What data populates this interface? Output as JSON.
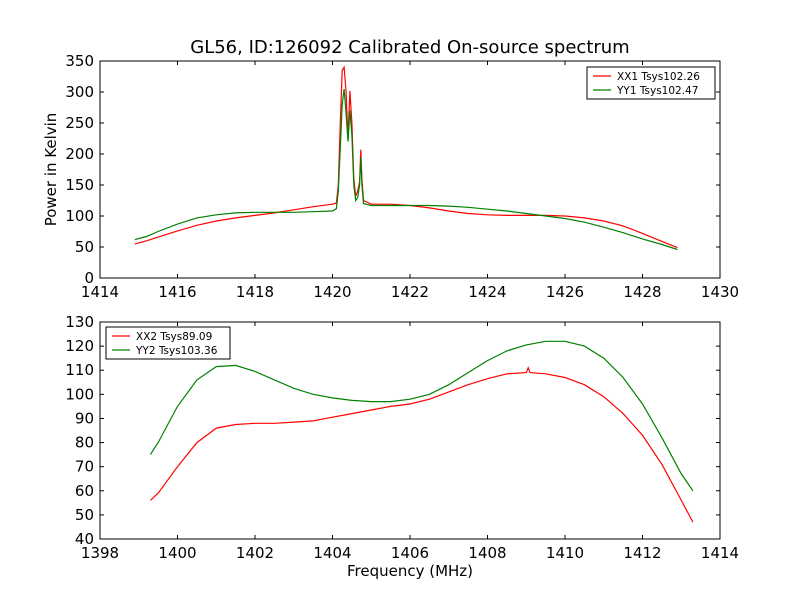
{
  "figure": {
    "title": "GL56, ID:126092 Calibrated On-source spectrum"
  },
  "chart_data": [
    {
      "type": "line",
      "title": "GL56, ID:126092 Calibrated On-source spectrum",
      "xlabel": "",
      "ylabel": "Power in Kelvin",
      "xlim": [
        1414,
        1430
      ],
      "ylim": [
        0,
        350
      ],
      "xticks": [
        1414,
        1416,
        1418,
        1420,
        1422,
        1424,
        1426,
        1428,
        1430
      ],
      "yticks": [
        0,
        50,
        100,
        150,
        200,
        250,
        300,
        350
      ],
      "grid": false,
      "legend": "top-right",
      "series": [
        {
          "name": "XX1 Tsys102.26",
          "color": "#ff0000",
          "points": [
            [
              1414.9,
              55
            ],
            [
              1415.2,
              60
            ],
            [
              1415.5,
              66
            ],
            [
              1416,
              76
            ],
            [
              1416.5,
              85
            ],
            [
              1417,
              92
            ],
            [
              1417.5,
              97
            ],
            [
              1418,
              101
            ],
            [
              1418.5,
              105
            ],
            [
              1419,
              110
            ],
            [
              1419.5,
              115
            ],
            [
              1420,
              119
            ],
            [
              1420.1,
              121
            ],
            [
              1420.15,
              150
            ],
            [
              1420.2,
              250
            ],
            [
              1420.25,
              335
            ],
            [
              1420.3,
              340
            ],
            [
              1420.35,
              300
            ],
            [
              1420.4,
              225
            ],
            [
              1420.45,
              302
            ],
            [
              1420.5,
              250
            ],
            [
              1420.55,
              160
            ],
            [
              1420.6,
              132
            ],
            [
              1420.65,
              140
            ],
            [
              1420.7,
              155
            ],
            [
              1420.73,
              207
            ],
            [
              1420.76,
              160
            ],
            [
              1420.8,
              125
            ],
            [
              1421,
              119
            ],
            [
              1421.5,
              119
            ],
            [
              1422,
              117
            ],
            [
              1422.5,
              113
            ],
            [
              1423,
              108
            ],
            [
              1423.5,
              104
            ],
            [
              1424,
              102
            ],
            [
              1424.5,
              101
            ],
            [
              1425,
              101
            ],
            [
              1425.5,
              101
            ],
            [
              1426,
              100
            ],
            [
              1426.5,
              97
            ],
            [
              1427,
              92
            ],
            [
              1427.5,
              84
            ],
            [
              1428,
              72
            ],
            [
              1428.5,
              59
            ],
            [
              1428.9,
              49
            ]
          ]
        },
        {
          "name": "YY1 Tsys102.47",
          "color": "#008000",
          "points": [
            [
              1414.9,
              62
            ],
            [
              1415.2,
              67
            ],
            [
              1415.5,
              75
            ],
            [
              1416,
              87
            ],
            [
              1416.5,
              97
            ],
            [
              1417,
              102
            ],
            [
              1417.5,
              105
            ],
            [
              1418,
              106
            ],
            [
              1418.5,
              106
            ],
            [
              1419,
              106
            ],
            [
              1419.5,
              107
            ],
            [
              1420,
              108
            ],
            [
              1420.1,
              112
            ],
            [
              1420.15,
              140
            ],
            [
              1420.2,
              210
            ],
            [
              1420.25,
              280
            ],
            [
              1420.3,
              305
            ],
            [
              1420.35,
              265
            ],
            [
              1420.4,
              220
            ],
            [
              1420.45,
              270
            ],
            [
              1420.5,
              230
            ],
            [
              1420.55,
              150
            ],
            [
              1420.6,
              125
            ],
            [
              1420.65,
              130
            ],
            [
              1420.7,
              150
            ],
            [
              1420.73,
              195
            ],
            [
              1420.76,
              150
            ],
            [
              1420.8,
              120
            ],
            [
              1421,
              117
            ],
            [
              1421.5,
              117
            ],
            [
              1422,
              117
            ],
            [
              1422.5,
              117
            ],
            [
              1423,
              116
            ],
            [
              1423.5,
              114
            ],
            [
              1424,
              111
            ],
            [
              1424.5,
              108
            ],
            [
              1425,
              104
            ],
            [
              1425.5,
              100
            ],
            [
              1426,
              96
            ],
            [
              1426.5,
              90
            ],
            [
              1427,
              82
            ],
            [
              1427.5,
              73
            ],
            [
              1428,
              63
            ],
            [
              1428.5,
              54
            ],
            [
              1428.9,
              46
            ]
          ]
        }
      ]
    },
    {
      "type": "line",
      "title": "",
      "xlabel": "Frequency (MHz)",
      "ylabel": "",
      "xlim": [
        1398,
        1414
      ],
      "ylim": [
        40,
        130
      ],
      "xticks": [
        1398,
        1400,
        1402,
        1404,
        1406,
        1408,
        1410,
        1412,
        1414
      ],
      "yticks": [
        40,
        50,
        60,
        70,
        80,
        90,
        100,
        110,
        120,
        130
      ],
      "grid": false,
      "legend": "top-left",
      "series": [
        {
          "name": "XX2 Tsys89.09",
          "color": "#ff0000",
          "points": [
            [
              1399.3,
              56
            ],
            [
              1399.5,
              59
            ],
            [
              1400,
              70
            ],
            [
              1400.5,
              80
            ],
            [
              1401,
              86
            ],
            [
              1401.5,
              87.5
            ],
            [
              1402,
              88
            ],
            [
              1402.5,
              88
            ],
            [
              1403,
              88.5
            ],
            [
              1403.5,
              89
            ],
            [
              1404,
              90.5
            ],
            [
              1404.5,
              92
            ],
            [
              1405,
              93.5
            ],
            [
              1405.5,
              95
            ],
            [
              1406,
              96
            ],
            [
              1406.5,
              98
            ],
            [
              1407,
              101
            ],
            [
              1407.5,
              104
            ],
            [
              1408,
              106.5
            ],
            [
              1408.5,
              108.5
            ],
            [
              1409,
              109
            ],
            [
              1409.05,
              111
            ],
            [
              1409.1,
              109
            ],
            [
              1409.5,
              108.5
            ],
            [
              1410,
              107
            ],
            [
              1410.5,
              104
            ],
            [
              1411,
              99
            ],
            [
              1411.5,
              92
            ],
            [
              1412,
              83
            ],
            [
              1412.5,
              71
            ],
            [
              1413,
              56
            ],
            [
              1413.3,
              47
            ]
          ]
        },
        {
          "name": "YY2 Tsys103.36",
          "color": "#008000",
          "points": [
            [
              1399.3,
              75
            ],
            [
              1399.5,
              80
            ],
            [
              1400,
              95
            ],
            [
              1400.5,
              106
            ],
            [
              1401,
              111.5
            ],
            [
              1401.5,
              112
            ],
            [
              1402,
              109.5
            ],
            [
              1402.5,
              106
            ],
            [
              1403,
              102.5
            ],
            [
              1403.5,
              100
            ],
            [
              1404,
              98.5
            ],
            [
              1404.5,
              97.5
            ],
            [
              1405,
              97
            ],
            [
              1405.5,
              97
            ],
            [
              1406,
              98
            ],
            [
              1406.5,
              100
            ],
            [
              1407,
              104
            ],
            [
              1407.5,
              109
            ],
            [
              1408,
              114
            ],
            [
              1408.5,
              118
            ],
            [
              1409,
              120.5
            ],
            [
              1409.5,
              122
            ],
            [
              1410,
              122
            ],
            [
              1410.5,
              120
            ],
            [
              1411,
              115
            ],
            [
              1411.5,
              107
            ],
            [
              1412,
              96
            ],
            [
              1412.5,
              82
            ],
            [
              1413,
              67
            ],
            [
              1413.3,
              60
            ]
          ]
        }
      ]
    }
  ]
}
